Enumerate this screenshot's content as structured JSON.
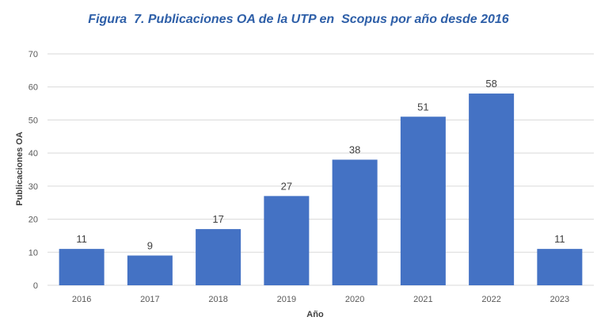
{
  "chart_data": {
    "type": "bar",
    "title": "Figura  7. Publicaciones OA de la UTP en  Scopus por año desde 2016",
    "xlabel": "Año",
    "ylabel": "Publicaciones OA",
    "categories": [
      "2016",
      "2017",
      "2018",
      "2019",
      "2020",
      "2021",
      "2022",
      "2023"
    ],
    "values": [
      11,
      9,
      17,
      27,
      38,
      51,
      58,
      11
    ],
    "ylim": [
      0,
      70
    ],
    "yticks": [
      0,
      10,
      20,
      30,
      40,
      50,
      60,
      70
    ],
    "grid": true,
    "legend": "none",
    "bar_color": "#4472C4",
    "title_color": "#2E5FA8"
  }
}
